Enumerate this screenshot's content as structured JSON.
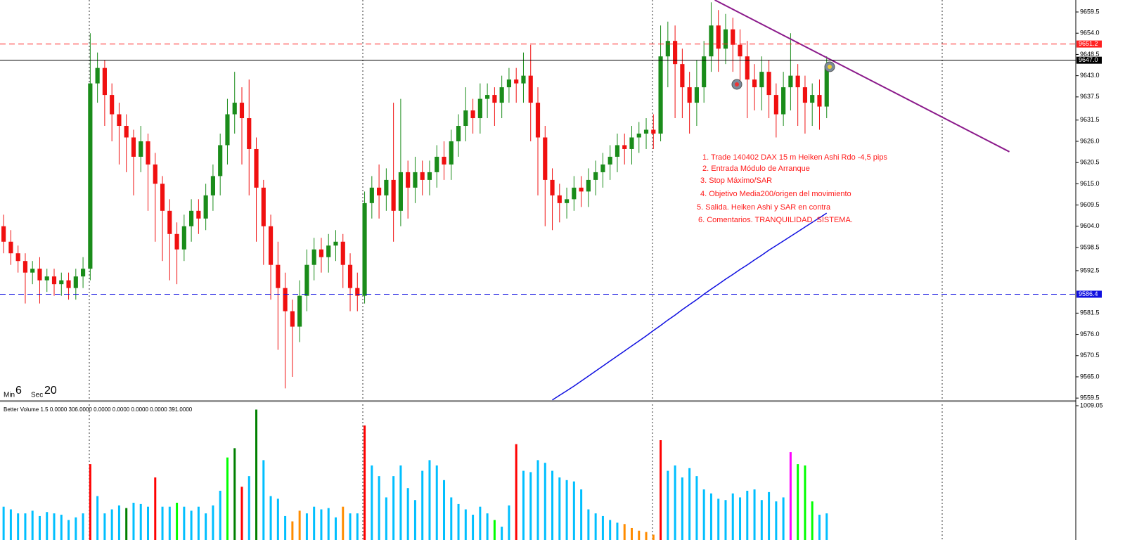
{
  "chart_data": {
    "type": "candlestick",
    "up_color": "#1a8c1a",
    "down_color": "#f01010",
    "xlim": [
      -0.5,
      148.5
    ],
    "ylim": [
      9558.8,
      9662.6
    ],
    "yticks": [
      9659.5,
      {
        "value": 9654,
        "label": "9654.0"
      },
      9648.5,
      {
        "value": 9643,
        "label": "9643.0"
      },
      9637.5,
      9631.5,
      {
        "value": 9626,
        "label": "9626.0"
      },
      9620.5,
      {
        "value": 9615,
        "label": "9615.0"
      },
      9609.5,
      {
        "value": 9604,
        "label": "9604.0"
      },
      9598.5,
      9592.5,
      9581.5,
      {
        "value": 9576,
        "label": "9576.0"
      },
      9570.5,
      {
        "value": 9565,
        "label": "9565.0"
      },
      9559.5
    ],
    "open": [
      9604,
      9600,
      9597,
      9595,
      9592,
      9593,
      9590,
      9591,
      9589,
      9590,
      9588,
      9591,
      9593,
      9641,
      9645,
      9638,
      9633,
      9630,
      9627,
      9622,
      9626,
      9620,
      9615,
      9608,
      9602,
      9598,
      9604,
      9608,
      9606,
      9612,
      9617,
      9625,
      9633,
      9636,
      9632,
      9624,
      9614,
      9604,
      9594,
      9588,
      9582,
      9578,
      9586,
      9594,
      9598,
      9596,
      9599,
      9600,
      9594,
      9588,
      9586,
      9610,
      9614,
      9612,
      9616,
      9608,
      9618,
      9614,
      9618,
      9616,
      9618,
      9622,
      9620,
      9626,
      9630,
      9634,
      9632,
      9637,
      9638,
      9636,
      9640,
      9642,
      9641,
      9643,
      9636,
      9627,
      9616,
      9612,
      9610,
      9611,
      9614,
      9613,
      9616,
      9618,
      9620,
      9622,
      9625,
      9624,
      9627,
      9628,
      9629,
      9628,
      9648,
      9652,
      9646,
      9640,
      9636,
      9640,
      9648,
      9656,
      9650,
      9655,
      9651,
      9648,
      9642,
      9640,
      9644,
      9638,
      9633,
      9640,
      9643,
      9640,
      9636,
      9638,
      9635
    ],
    "high": [
      9607,
      9603,
      9599,
      9597,
      9595,
      9596,
      9593,
      9593,
      9592,
      9592,
      9593,
      9596,
      9654,
      9649,
      9647,
      9641,
      9636,
      9633,
      9629,
      9630,
      9628,
      9623,
      9617,
      9611,
      9605,
      9607,
      9611,
      9611,
      9615,
      9620,
      9628,
      9637,
      9644,
      9640,
      9642,
      9627,
      9616,
      9607,
      9600,
      9592,
      9585,
      9590,
      9598,
      9601,
      9601,
      9602,
      9603,
      9602,
      9597,
      9592,
      9613,
      9617,
      9620,
      9619,
      9636,
      9637,
      9621,
      9622,
      9621,
      9621,
      9625,
      9626,
      9629,
      9633,
      9640,
      9637,
      9641,
      9641,
      9640,
      9643,
      9645,
      9645,
      9649,
      9651,
      9640,
      9630,
      9619,
      9615,
      9614,
      9617,
      9617,
      9619,
      9621,
      9623,
      9625,
      9628,
      9628,
      9630,
      9631,
      9632,
      9633,
      9656,
      9657,
      9656,
      9650,
      9644,
      9647,
      9652,
      9662,
      9660,
      9659,
      9658,
      9655,
      9652,
      9646,
      9648,
      9647,
      9641,
      9644,
      9654,
      9646,
      9643,
      9641,
      9642,
      9648
    ],
    "low": [
      9597,
      9594,
      9592,
      9584,
      9589,
      9584,
      9587,
      9586,
      9586,
      9585,
      9585,
      9588,
      9590,
      9636,
      9630,
      9626,
      9620,
      9618,
      9612,
      9618,
      9608,
      9600,
      9595,
      9590,
      9589,
      9595,
      9600,
      9602,
      9603,
      9608,
      9612,
      9620,
      9628,
      9620,
      9612,
      9600,
      9594,
      9585,
      9572,
      9562,
      9565,
      9574,
      9582,
      9590,
      9592,
      9592,
      9595,
      9588,
      9582,
      9582,
      9584,
      9606,
      9606,
      9608,
      9600,
      9604,
      9606,
      9610,
      9612,
      9612,
      9614,
      9616,
      9616,
      9622,
      9626,
      9628,
      9628,
      9632,
      9630,
      9632,
      9636,
      9636,
      9636,
      9626,
      9612,
      9604,
      9603,
      9605,
      9606,
      9608,
      9609,
      9609,
      9612,
      9614,
      9616,
      9618,
      9620,
      9620,
      9623,
      9624,
      9624,
      9626,
      9640,
      9632,
      9632,
      9628,
      9630,
      9636,
      9644,
      9644,
      9646,
      9644,
      9640,
      9632,
      9634,
      9634,
      9632,
      9627,
      9630,
      9634,
      9630,
      9628,
      9630,
      9629,
      9632
    ],
    "close": [
      9600,
      9597,
      9595,
      9592,
      9593,
      9590,
      9591,
      9589,
      9590,
      9588,
      9591,
      9593,
      9641,
      9645,
      9638,
      9633,
      9630,
      9627,
      9622,
      9626,
      9620,
      9615,
      9608,
      9602,
      9598,
      9604,
      9608,
      9606,
      9612,
      9617,
      9625,
      9633,
      9636,
      9632,
      9624,
      9614,
      9604,
      9594,
      9588,
      9582,
      9578,
      9586,
      9594,
      9598,
      9596,
      9599,
      9600,
      9594,
      9588,
      9586,
      9610,
      9614,
      9612,
      9616,
      9608,
      9618,
      9614,
      9618,
      9616,
      9618,
      9622,
      9620,
      9626,
      9630,
      9634,
      9632,
      9637,
      9638,
      9636,
      9640,
      9642,
      9641,
      9643,
      9636,
      9627,
      9616,
      9612,
      9610,
      9611,
      9614,
      9613,
      9616,
      9618,
      9620,
      9622,
      9625,
      9624,
      9627,
      9628,
      9629,
      9628,
      9648,
      9652,
      9646,
      9640,
      9636,
      9640,
      9648,
      9656,
      9650,
      9655,
      9651,
      9648,
      9642,
      9640,
      9644,
      9638,
      9633,
      9640,
      9643,
      9640,
      9636,
      9638,
      9635,
      9645
    ],
    "ma": [
      null,
      null,
      null,
      null,
      null,
      null,
      null,
      null,
      null,
      null,
      null,
      null,
      null,
      null,
      null,
      null,
      null,
      null,
      null,
      null,
      null,
      null,
      null,
      null,
      null,
      null,
      null,
      null,
      null,
      null,
      null,
      null,
      null,
      null,
      null,
      null,
      null,
      null,
      null,
      null,
      null,
      null,
      null,
      null,
      null,
      null,
      null,
      null,
      null,
      null,
      null,
      null,
      null,
      null,
      null,
      null,
      null,
      null,
      null,
      null,
      null,
      null,
      null,
      null,
      null,
      null,
      null,
      null,
      null,
      null,
      null,
      null,
      null,
      null,
      null,
      null,
      9559,
      9560.2,
      9561.4,
      9562.6,
      9563.9,
      9565.2,
      9566.5,
      9567.8,
      9569.1,
      9570.4,
      9571.7,
      9573,
      9574.3,
      9575.6,
      9577,
      9578.3,
      9579.7,
      9581,
      9582.4,
      9583.7,
      9585,
      9586.4,
      9587.7,
      9589,
      9590.3,
      9591.5,
      9592.8,
      9594,
      9595.3,
      9596.5,
      9597.8,
      9599,
      9600.2,
      9601.4,
      9602.6,
      9603.8,
      9605,
      9606.2,
      9607.4
    ],
    "ma_color": "#1010e0",
    "trendline": {
      "x": [
        98.5,
        139.3
      ],
      "y": [
        9662.6,
        9623.3
      ],
      "color": "#8b1a8b"
    },
    "levels": [
      {
        "value": 9651.2,
        "color": "#ff2020",
        "dashed": true
      },
      {
        "value": 9647,
        "label": "9647.0",
        "color": "#000000",
        "dashed": false
      },
      {
        "value": 9586.4,
        "color": "#1010e0",
        "dashed": true
      }
    ],
    "annotations": [
      "1. Trade 140402 DAX 15 m Heiken Ashi Rdo -4,5 pips",
      "2. Entrada Módulo de Arranque",
      "3. Stop Máximo/SAR",
      "4. Objetivo Media200/origen del movimiento",
      "5. Salida. Heiken Ashi y SAR en contra",
      "6. Comentarios. TRANQUILIDAD. SISTEMA."
    ],
    "annotation_color": "#ff1a1a",
    "timer": {
      "min_label": "Min",
      "min": 6,
      "sec_label": "Sec",
      "sec": 20
    },
    "volume": {
      "title": "Better Volume 1.5 0.0000 306.0000 0.0000 0.0000 0.0000 0.0000 391.0000",
      "ylim": [
        0,
        1009.05
      ],
      "yticks": [
        1009.05
      ],
      "values": [
        250,
        230,
        200,
        200,
        220,
        180,
        210,
        200,
        190,
        150,
        170,
        200,
        570,
        330,
        200,
        230,
        260,
        240,
        280,
        270,
        250,
        470,
        250,
        250,
        280,
        250,
        220,
        250,
        200,
        260,
        370,
        620,
        690,
        400,
        480,
        980,
        600,
        330,
        310,
        180,
        140,
        220,
        200,
        250,
        230,
        240,
        170,
        250,
        200,
        200,
        860,
        560,
        480,
        320,
        480,
        560,
        390,
        300,
        520,
        600,
        560,
        450,
        320,
        270,
        230,
        190,
        250,
        200,
        150,
        100,
        260,
        720,
        520,
        510,
        600,
        580,
        520,
        470,
        450,
        440,
        380,
        230,
        200,
        180,
        150,
        130,
        120,
        90,
        70,
        60,
        40,
        750,
        520,
        560,
        470,
        540,
        480,
        380,
        350,
        310,
        300,
        350,
        320,
        370,
        380,
        300,
        360,
        290,
        320,
        660,
        570,
        560,
        290,
        190,
        200
      ],
      "colors": [
        "deepskyblue",
        "deepskyblue",
        "deepskyblue",
        "deepskyblue",
        "deepskyblue",
        "deepskyblue",
        "deepskyblue",
        "deepskyblue",
        "deepskyblue",
        "deepskyblue",
        "deepskyblue",
        "deepskyblue",
        "red",
        "deepskyblue",
        "deepskyblue",
        "deepskyblue",
        "deepskyblue",
        "green",
        "deepskyblue",
        "deepskyblue",
        "deepskyblue",
        "red",
        "deepskyblue",
        "deepskyblue",
        "lime",
        "deepskyblue",
        "deepskyblue",
        "deepskyblue",
        "deepskyblue",
        "deepskyblue",
        "deepskyblue",
        "lime",
        "green",
        "red",
        "deepskyblue",
        "green",
        "deepskyblue",
        "deepskyblue",
        "deepskyblue",
        "deepskyblue",
        "darkorange",
        "darkorange",
        "deepskyblue",
        "deepskyblue",
        "deepskyblue",
        "deepskyblue",
        "deepskyblue",
        "darkorange",
        "deepskyblue",
        "deepskyblue",
        "red",
        "deepskyblue",
        "deepskyblue",
        "deepskyblue",
        "deepskyblue",
        "deepskyblue",
        "deepskyblue",
        "deepskyblue",
        "deepskyblue",
        "deepskyblue",
        "deepskyblue",
        "deepskyblue",
        "deepskyblue",
        "deepskyblue",
        "deepskyblue",
        "deepskyblue",
        "deepskyblue",
        "deepskyblue",
        "lime",
        "deepskyblue",
        "deepskyblue",
        "red",
        "deepskyblue",
        "deepskyblue",
        "deepskyblue",
        "deepskyblue",
        "deepskyblue",
        "deepskyblue",
        "deepskyblue",
        "deepskyblue",
        "deepskyblue",
        "deepskyblue",
        "deepskyblue",
        "deepskyblue",
        "deepskyblue",
        "deepskyblue",
        "darkorange",
        "darkorange",
        "darkorange",
        "darkorange",
        "darkorange",
        "red",
        "deepskyblue",
        "deepskyblue",
        "deepskyblue",
        "deepskyblue",
        "deepskyblue",
        "deepskyblue",
        "deepskyblue",
        "deepskyblue",
        "deepskyblue",
        "deepskyblue",
        "deepskyblue",
        "deepskyblue",
        "deepskyblue",
        "deepskyblue",
        "deepskyblue",
        "deepskyblue",
        "deepskyblue",
        "magenta",
        "lime",
        "lime",
        "lime",
        "deepskyblue",
        "deepskyblue"
      ]
    }
  }
}
